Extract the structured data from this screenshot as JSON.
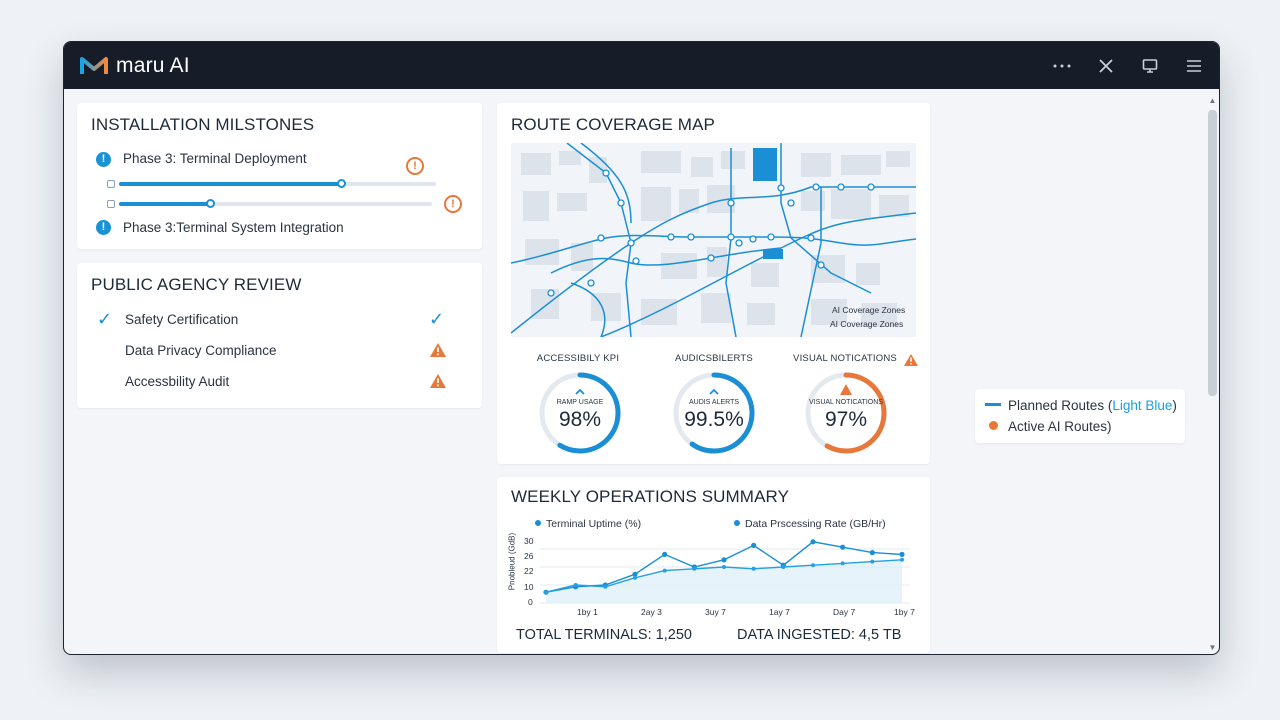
{
  "app": {
    "name": "maru AI"
  },
  "colors": {
    "accent": "#1a8fd6",
    "warning": "#e8773a",
    "titlebar": "#161d29"
  },
  "milestones": {
    "title": "INSTALLATION MILSTONES",
    "items": [
      {
        "label": "Phase 3: Terminal Deployment",
        "progress": 0.7,
        "status": "warning"
      },
      {
        "label": "Phase 3:Terminal System Integration",
        "progress": 0.29,
        "status": "warning"
      }
    ]
  },
  "review": {
    "title": "PUBLIC AGENCY REVIEW",
    "items": [
      {
        "label": "Safety Certification",
        "status": "complete"
      },
      {
        "label": "Data Privacy Compliance",
        "status": "warning"
      },
      {
        "label": "Accessbility Audit",
        "status": "warning"
      }
    ]
  },
  "map": {
    "title": "ROUTE COVERAGE MAP",
    "zones_label_1": "AI Coverage Zones",
    "zones_label_2": "AI Coverage Zones"
  },
  "kpis": [
    {
      "title": "ACCESSIBILY KPI",
      "sub": "RAMP USAGE",
      "value": "98%",
      "fraction": 0.98,
      "color": "#1a8fd6"
    },
    {
      "title": "AUDICSBILERTS",
      "sub": "AUDIS ALERTS",
      "value": "99.5%",
      "fraction": 0.995,
      "color": "#1a8fd6"
    },
    {
      "title": "VISUAL NOTICATIONS",
      "sub": "VISUAL NOTICATIONS",
      "value": "97%",
      "fraction": 0.97,
      "color": "#e8773a"
    }
  ],
  "weekly": {
    "title": "WEEKLY OPERATIONS SUMMARY",
    "total_terminals": "TOTAL TERMINALS: 1,250",
    "data_ingested": "DATA INGESTED: 4,5 TB"
  },
  "chart_data": {
    "type": "line",
    "ylabel": "Pnobleud (GdB)",
    "y_ticks": [
      "30",
      "26",
      "22",
      "10",
      "0"
    ],
    "x_ticks": [
      "1by 1",
      "2ay 3",
      "3uy 7",
      "1ay 7",
      "Day 7",
      "1by 7"
    ],
    "series": [
      {
        "name": "Terminal Uptime (%)",
        "values": [
          [
            0,
            6
          ],
          [
            1,
            9
          ],
          [
            2,
            10
          ],
          [
            3,
            16
          ],
          [
            4,
            27
          ],
          [
            5,
            20
          ],
          [
            6,
            24
          ],
          [
            7,
            32
          ],
          [
            8,
            21
          ],
          [
            9,
            34
          ],
          [
            10,
            31
          ],
          [
            11,
            28
          ],
          [
            12,
            27
          ]
        ]
      },
      {
        "name": "Data Prscessing Rate (GB/Hr)",
        "values": [
          [
            0,
            6
          ],
          [
            1,
            10
          ],
          [
            2,
            9
          ],
          [
            3,
            14
          ],
          [
            4,
            18
          ],
          [
            5,
            19
          ],
          [
            6,
            20
          ],
          [
            7,
            19
          ],
          [
            8,
            20
          ],
          [
            9,
            21
          ],
          [
            10,
            22
          ],
          [
            11,
            23
          ],
          [
            12,
            24
          ]
        ]
      }
    ]
  },
  "route_legend": {
    "planned_prefix": "Planned Routes (",
    "planned_accent": "Light Blue",
    "planned_suffix": ")",
    "active": "Active AI Routes)"
  }
}
